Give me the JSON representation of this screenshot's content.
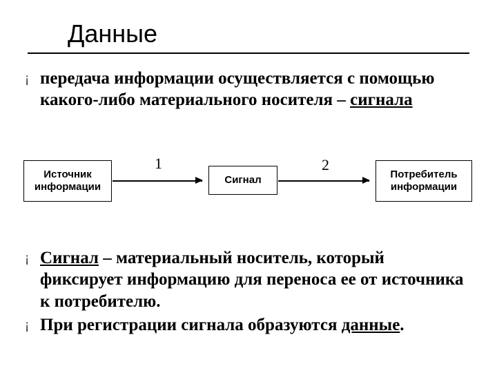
{
  "title": "Данные",
  "intro": {
    "text_before": "передача информации осуществляется с помощью какого-либо материального носителя – ",
    "underlined": "сигнала"
  },
  "diagram": {
    "type": "flowchart",
    "nodes": [
      {
        "id": "box1",
        "label_line1": "Источник",
        "label_line2": "информации"
      },
      {
        "id": "box2",
        "label_line1": "Сигнал",
        "label_line2": ""
      },
      {
        "id": "box3",
        "label_line1": "Потребитель",
        "label_line2": "информации"
      }
    ],
    "edges": [
      {
        "from": "box1",
        "to": "box2",
        "label": "1"
      },
      {
        "from": "box2",
        "to": "box3",
        "label": "2"
      }
    ],
    "border_color": "#000000",
    "background_color": "#ffffff",
    "node_fontsize": 15,
    "label_fontsize": 22
  },
  "bullet_glyph": "¡",
  "definition1": {
    "underlined": "Сигнал",
    "rest": " – материальный носитель, который фиксирует информацию для переноса ее от источника к потребителю."
  },
  "definition2": {
    "text_before": "При регистрации сигнала образуются ",
    "underlined": "данные",
    "after": "."
  },
  "colors": {
    "background": "#ffffff",
    "text": "#000000",
    "bullet": "#333333",
    "underline": "#000000"
  },
  "title_fontsize": 36,
  "body_fontsize": 25
}
